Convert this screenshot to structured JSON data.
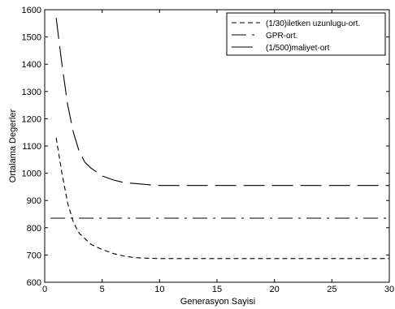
{
  "chart_data": {
    "type": "line",
    "title": "",
    "xlabel": "Generasyon Sayisi",
    "ylabel": "Ortalama Degerler",
    "xlim": [
      0,
      30
    ],
    "ylim": [
      600,
      1600
    ],
    "xticks": [
      0,
      5,
      10,
      15,
      20,
      25,
      30
    ],
    "yticks": [
      600,
      700,
      800,
      900,
      1000,
      1100,
      1200,
      1300,
      1400,
      1500,
      1600
    ],
    "grid": false,
    "legend_position": "top-right",
    "series": [
      {
        "name": "(1/30)iletken uzunlugu-ort.",
        "style": "dashed-short",
        "color": "#000000",
        "x": [
          1,
          1.5,
          2,
          2.5,
          3,
          3.5,
          4,
          5,
          6,
          7,
          8,
          9,
          10,
          12,
          15,
          20,
          25,
          30
        ],
        "y": [
          1130,
          1000,
          890,
          820,
          780,
          760,
          740,
          720,
          705,
          695,
          690,
          688,
          687,
          687,
          687,
          687,
          687,
          687
        ]
      },
      {
        "name": "GPR-ort.",
        "style": "dashdot",
        "color": "#000000",
        "x": [
          0.5,
          5,
          10,
          15,
          20,
          25,
          30
        ],
        "y": [
          835,
          835,
          835,
          835,
          835,
          835,
          835
        ]
      },
      {
        "name": "(1/500)maliyet-ort",
        "style": "dashed-long",
        "color": "#000000",
        "x": [
          1,
          1.5,
          2,
          2.5,
          3,
          3.5,
          4,
          5,
          6,
          7,
          8,
          9,
          10,
          12,
          15,
          20,
          25,
          30
        ],
        "y": [
          1570,
          1400,
          1250,
          1150,
          1080,
          1040,
          1020,
          990,
          975,
          965,
          962,
          958,
          955,
          955,
          955,
          955,
          955,
          955
        ]
      }
    ]
  }
}
